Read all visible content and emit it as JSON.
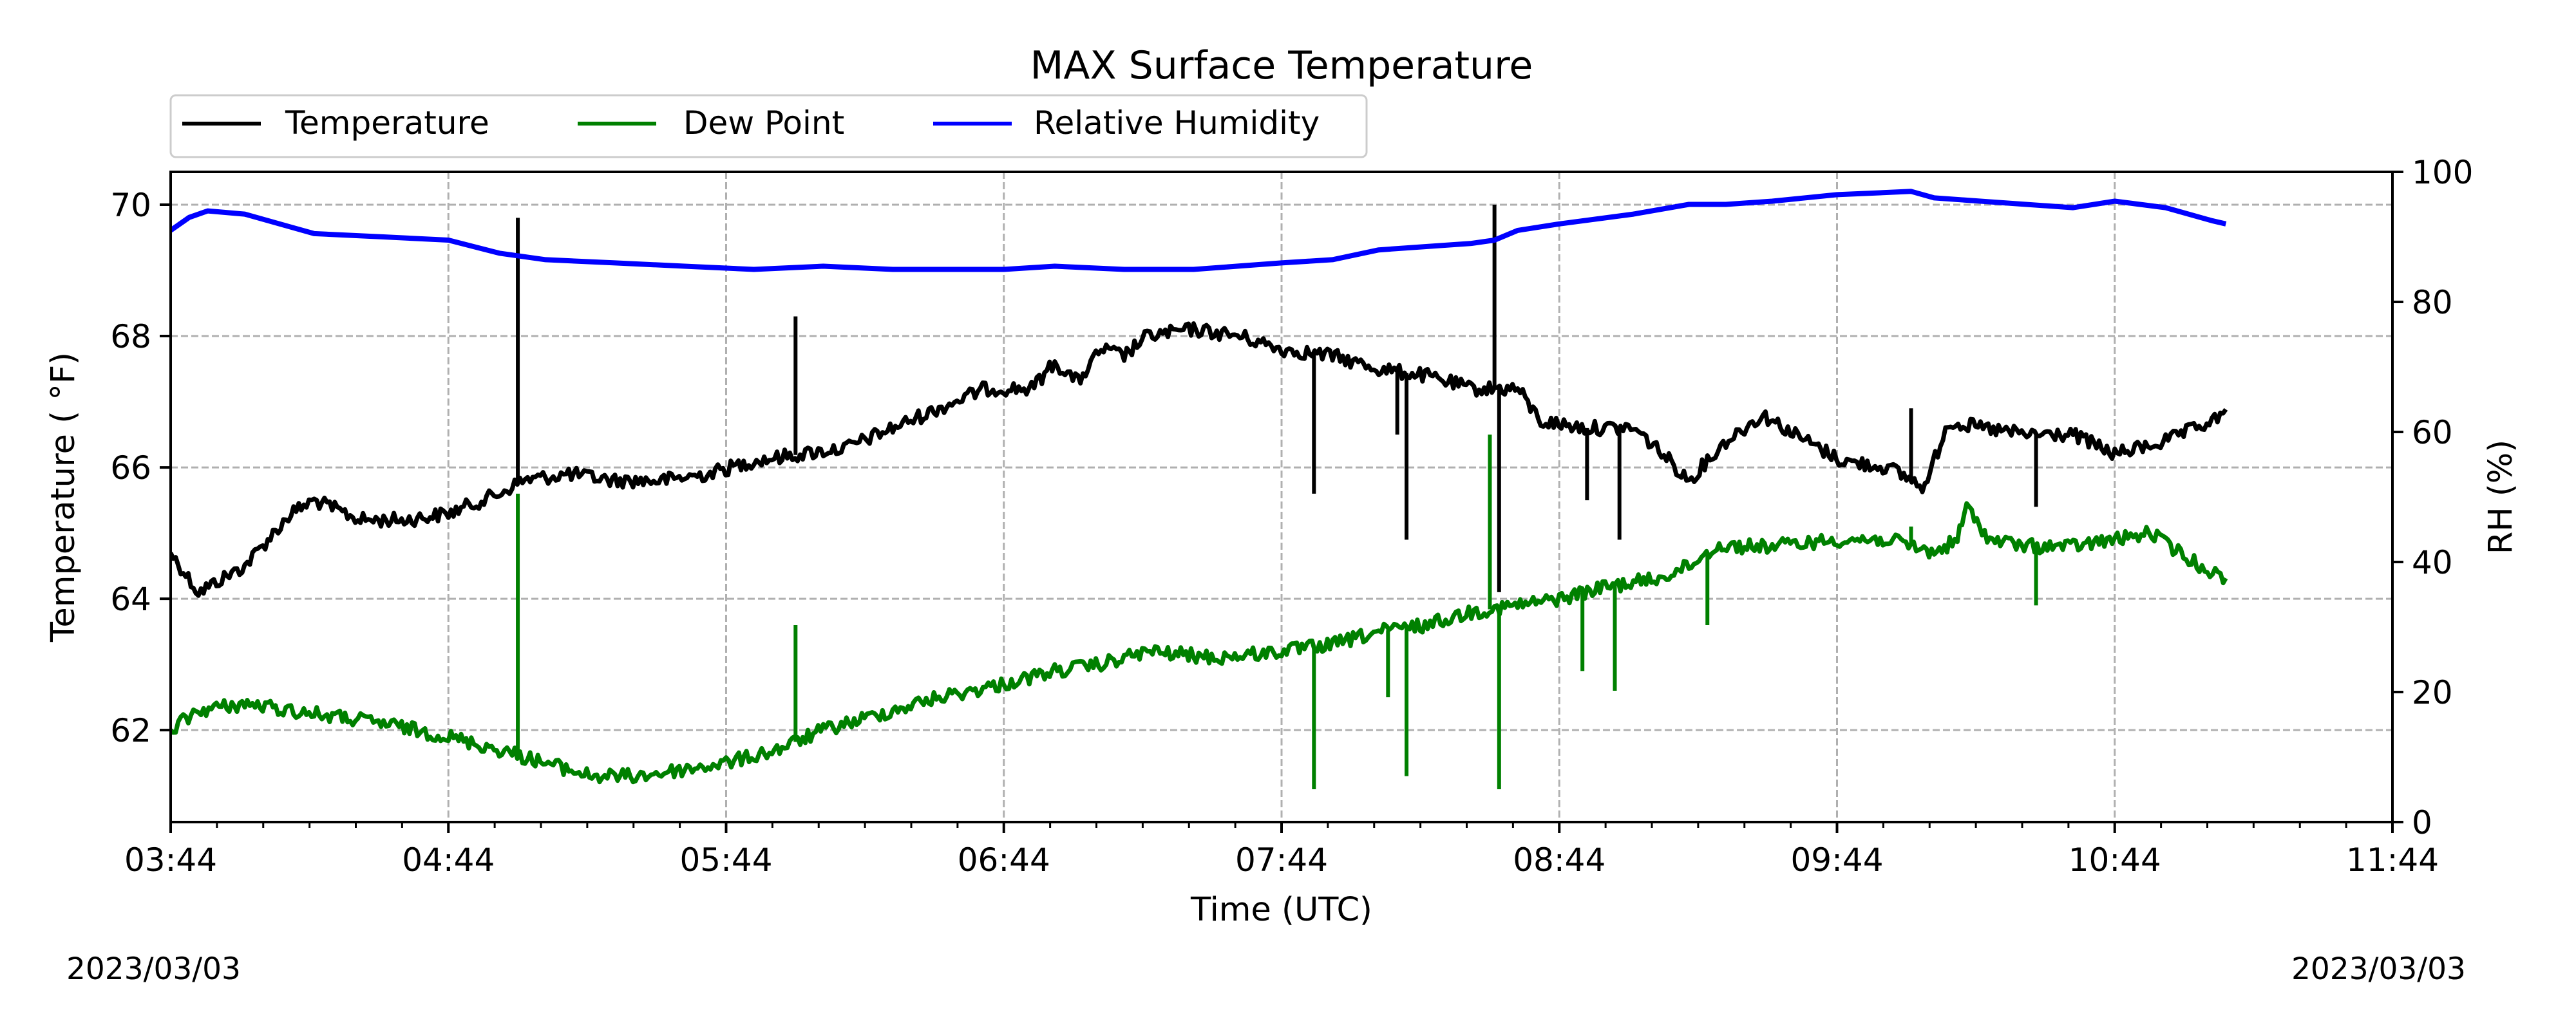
{
  "chart_data": {
    "type": "line",
    "title": "MAX Surface Temperature",
    "xlabel": "Time (UTC)",
    "ylabel": "Temperature ($^\\circ$F)",
    "ylabel_display": "Temperature ( °F)",
    "y2label": "RH (%)",
    "x_ticks": [
      "03:44",
      "04:44",
      "05:44",
      "06:44",
      "07:44",
      "08:44",
      "09:44",
      "10:44",
      "11:44"
    ],
    "x_range": [
      "03:44",
      "11:44"
    ],
    "ylim": [
      60.6,
      70.5
    ],
    "y_ticks": [
      62,
      64,
      66,
      68,
      70
    ],
    "y2lim": [
      0,
      100
    ],
    "y2_ticks": [
      0,
      20,
      40,
      60,
      80,
      100
    ],
    "grid": true,
    "legend": [
      "Temperature",
      "Dew Point",
      "Relative Humidity"
    ],
    "legend_position": "top-left, above plot",
    "footer_dates": [
      "2023/03/03",
      "2023/03/03"
    ],
    "colors": {
      "Temperature": "#000000",
      "Dew Point": "#008000",
      "Relative Humidity": "#0000ff"
    },
    "series": [
      {
        "name": "Temperature",
        "axis": "left",
        "points": [
          [
            "03:44",
            64.7
          ],
          [
            "03:50",
            64.1
          ],
          [
            "04:00",
            64.5
          ],
          [
            "04:10",
            65.3
          ],
          [
            "04:15",
            65.5
          ],
          [
            "04:25",
            65.2
          ],
          [
            "04:35",
            65.2
          ],
          [
            "04:44",
            65.3
          ],
          [
            "04:55",
            65.6
          ],
          [
            "05:00",
            65.8
          ],
          [
            "05:10",
            65.9
          ],
          [
            "05:20",
            65.8
          ],
          [
            "05:30",
            65.8
          ],
          [
            "05:40",
            65.9
          ],
          [
            "05:50",
            66.1
          ],
          [
            "06:00",
            66.2
          ],
          [
            "06:10",
            66.3
          ],
          [
            "06:20",
            66.6
          ],
          [
            "06:30",
            66.9
          ],
          [
            "06:40",
            67.2
          ],
          [
            "06:50",
            67.2
          ],
          [
            "06:55",
            67.6
          ],
          [
            "07:00",
            67.3
          ],
          [
            "07:05",
            67.8
          ],
          [
            "07:10",
            67.7
          ],
          [
            "07:15",
            68.0
          ],
          [
            "07:25",
            68.1
          ],
          [
            "07:35",
            68.0
          ],
          [
            "07:44",
            67.8
          ],
          [
            "07:55",
            67.7
          ],
          [
            "08:05",
            67.5
          ],
          [
            "08:15",
            67.4
          ],
          [
            "08:25",
            67.2
          ],
          [
            "08:35",
            67.2
          ],
          [
            "08:40",
            66.7
          ],
          [
            "08:50",
            66.6
          ],
          [
            "09:00",
            66.6
          ],
          [
            "09:05",
            66.3
          ],
          [
            "09:12",
            65.8
          ],
          [
            "09:20",
            66.4
          ],
          [
            "09:28",
            66.8
          ],
          [
            "09:35",
            66.5
          ],
          [
            "09:45",
            66.1
          ],
          [
            "09:55",
            66.0
          ],
          [
            "10:03",
            65.7
          ],
          [
            "10:08",
            66.7
          ],
          [
            "10:15",
            66.6
          ],
          [
            "10:25",
            66.5
          ],
          [
            "10:35",
            66.5
          ],
          [
            "10:44",
            66.2
          ],
          [
            "10:55",
            66.4
          ],
          [
            "11:05",
            66.7
          ],
          [
            "11:08",
            66.8
          ]
        ],
        "spikes": [
          [
            "04:59",
            69.8
          ],
          [
            "05:59",
            68.3
          ],
          [
            "07:51",
            65.6
          ],
          [
            "08:09",
            66.5
          ],
          [
            "08:11",
            64.9
          ],
          [
            "08:30",
            70.0
          ],
          [
            "08:31",
            64.1
          ],
          [
            "08:50",
            65.5
          ],
          [
            "08:57",
            64.9
          ],
          [
            "09:35",
            66.6
          ],
          [
            "10:00",
            66.9
          ],
          [
            "10:27",
            65.4
          ]
        ]
      },
      {
        "name": "Dew Point",
        "axis": "left",
        "points": [
          [
            "03:44",
            62.0
          ],
          [
            "03:50",
            62.3
          ],
          [
            "04:00",
            62.4
          ],
          [
            "04:10",
            62.3
          ],
          [
            "04:20",
            62.2
          ],
          [
            "04:30",
            62.1
          ],
          [
            "04:44",
            61.9
          ],
          [
            "04:55",
            61.7
          ],
          [
            "05:05",
            61.5
          ],
          [
            "05:15",
            61.3
          ],
          [
            "05:25",
            61.3
          ],
          [
            "05:35",
            61.4
          ],
          [
            "05:44",
            61.5
          ],
          [
            "05:55",
            61.7
          ],
          [
            "06:05",
            62.0
          ],
          [
            "06:15",
            62.2
          ],
          [
            "06:30",
            62.5
          ],
          [
            "06:44",
            62.7
          ],
          [
            "06:55",
            62.9
          ],
          [
            "07:05",
            63.0
          ],
          [
            "07:15",
            63.2
          ],
          [
            "07:30",
            63.1
          ],
          [
            "07:44",
            63.2
          ],
          [
            "07:55",
            63.3
          ],
          [
            "08:05",
            63.5
          ],
          [
            "08:15",
            63.6
          ],
          [
            "08:25",
            63.8
          ],
          [
            "08:35",
            63.9
          ],
          [
            "08:44",
            64.0
          ],
          [
            "08:55",
            64.2
          ],
          [
            "09:05",
            64.3
          ],
          [
            "09:12",
            64.5
          ],
          [
            "09:18",
            64.8
          ],
          [
            "09:30",
            64.8
          ],
          [
            "09:44",
            64.9
          ],
          [
            "09:55",
            64.9
          ],
          [
            "10:05",
            64.7
          ],
          [
            "10:10",
            64.9
          ],
          [
            "10:12",
            65.4
          ],
          [
            "10:17",
            64.9
          ],
          [
            "10:25",
            64.8
          ],
          [
            "10:35",
            64.8
          ],
          [
            "10:44",
            64.9
          ],
          [
            "10:52",
            65.0
          ],
          [
            "11:00",
            64.6
          ],
          [
            "11:08",
            64.3
          ]
        ],
        "spikes": [
          [
            "04:59",
            65.6
          ],
          [
            "05:59",
            63.6
          ],
          [
            "07:51",
            61.1
          ],
          [
            "08:07",
            62.5
          ],
          [
            "08:11",
            61.3
          ],
          [
            "08:29",
            66.5
          ],
          [
            "08:31",
            61.1
          ],
          [
            "08:49",
            62.9
          ],
          [
            "08:56",
            62.6
          ],
          [
            "09:16",
            63.6
          ],
          [
            "10:00",
            65.1
          ],
          [
            "10:27",
            63.9
          ]
        ]
      },
      {
        "name": "Relative Humidity",
        "axis": "right",
        "points": [
          [
            "03:44",
            91.0
          ],
          [
            "03:48",
            93.0
          ],
          [
            "03:52",
            94.0
          ],
          [
            "04:00",
            93.5
          ],
          [
            "04:10",
            91.5
          ],
          [
            "04:15",
            90.5
          ],
          [
            "04:30",
            90.0
          ],
          [
            "04:44",
            89.5
          ],
          [
            "04:55",
            87.5
          ],
          [
            "05:05",
            86.5
          ],
          [
            "05:20",
            86.0
          ],
          [
            "05:35",
            85.5
          ],
          [
            "05:50",
            85.0
          ],
          [
            "06:05",
            85.5
          ],
          [
            "06:20",
            85.0
          ],
          [
            "06:35",
            85.0
          ],
          [
            "06:44",
            85.0
          ],
          [
            "06:55",
            85.5
          ],
          [
            "07:10",
            85.0
          ],
          [
            "07:25",
            85.0
          ],
          [
            "07:44",
            86.0
          ],
          [
            "07:55",
            86.5
          ],
          [
            "08:05",
            88.0
          ],
          [
            "08:15",
            88.5
          ],
          [
            "08:25",
            89.0
          ],
          [
            "08:30",
            89.5
          ],
          [
            "08:35",
            91.0
          ],
          [
            "08:44",
            92.0
          ],
          [
            "09:00",
            93.5
          ],
          [
            "09:12",
            95.0
          ],
          [
            "09:20",
            95.0
          ],
          [
            "09:30",
            95.5
          ],
          [
            "09:44",
            96.5
          ],
          [
            "10:00",
            97.0
          ],
          [
            "10:05",
            96.0
          ],
          [
            "10:15",
            95.5
          ],
          [
            "10:35",
            94.5
          ],
          [
            "10:44",
            95.5
          ],
          [
            "10:55",
            94.5
          ],
          [
            "11:05",
            92.5
          ],
          [
            "11:08",
            92.0
          ]
        ]
      }
    ]
  }
}
